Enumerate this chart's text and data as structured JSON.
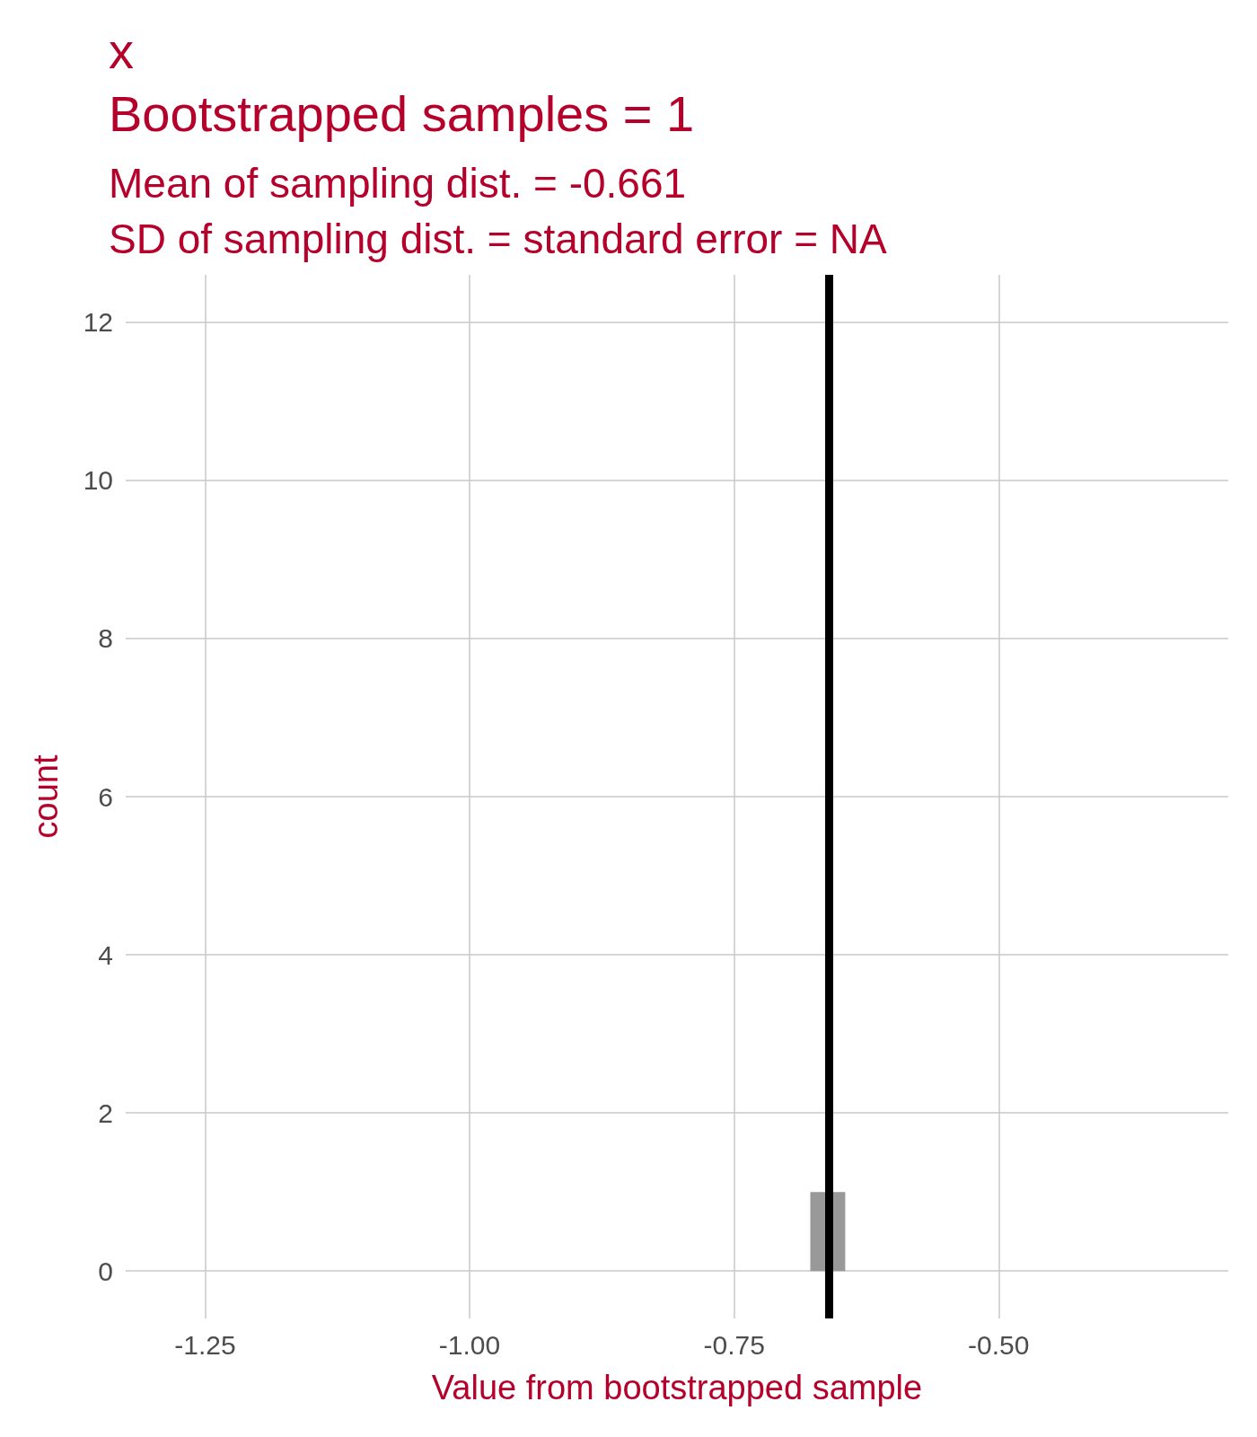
{
  "chart_data": {
    "type": "histogram",
    "title": "x\nBootstrapped samples = 1",
    "subtitle": "Mean of sampling dist. = -0.661\nSD of sampling dist. = standard error = NA",
    "xlabel": "Value from bootstrapped sample",
    "ylabel": "count",
    "bins": [
      -0.678,
      -0.645
    ],
    "values": [
      1
    ],
    "color": "#999999",
    "xlim": [
      -1.325,
      -0.283
    ],
    "xticks": [
      {
        "value": -1.25,
        "label": "-1.25"
      },
      {
        "value": -1,
        "label": "-1.00"
      },
      {
        "value": -0.75,
        "label": "-0.75"
      },
      {
        "value": -0.5,
        "label": "-0.50"
      }
    ],
    "ylim": [
      -0.6,
      12.6
    ],
    "yticks": [
      0,
      2,
      4,
      6,
      8,
      10,
      12
    ],
    "ref_lines": [
      {
        "axis": "x",
        "value": -0.661,
        "color": "#000000",
        "line_style": "solid"
      }
    ],
    "grid": true
  }
}
